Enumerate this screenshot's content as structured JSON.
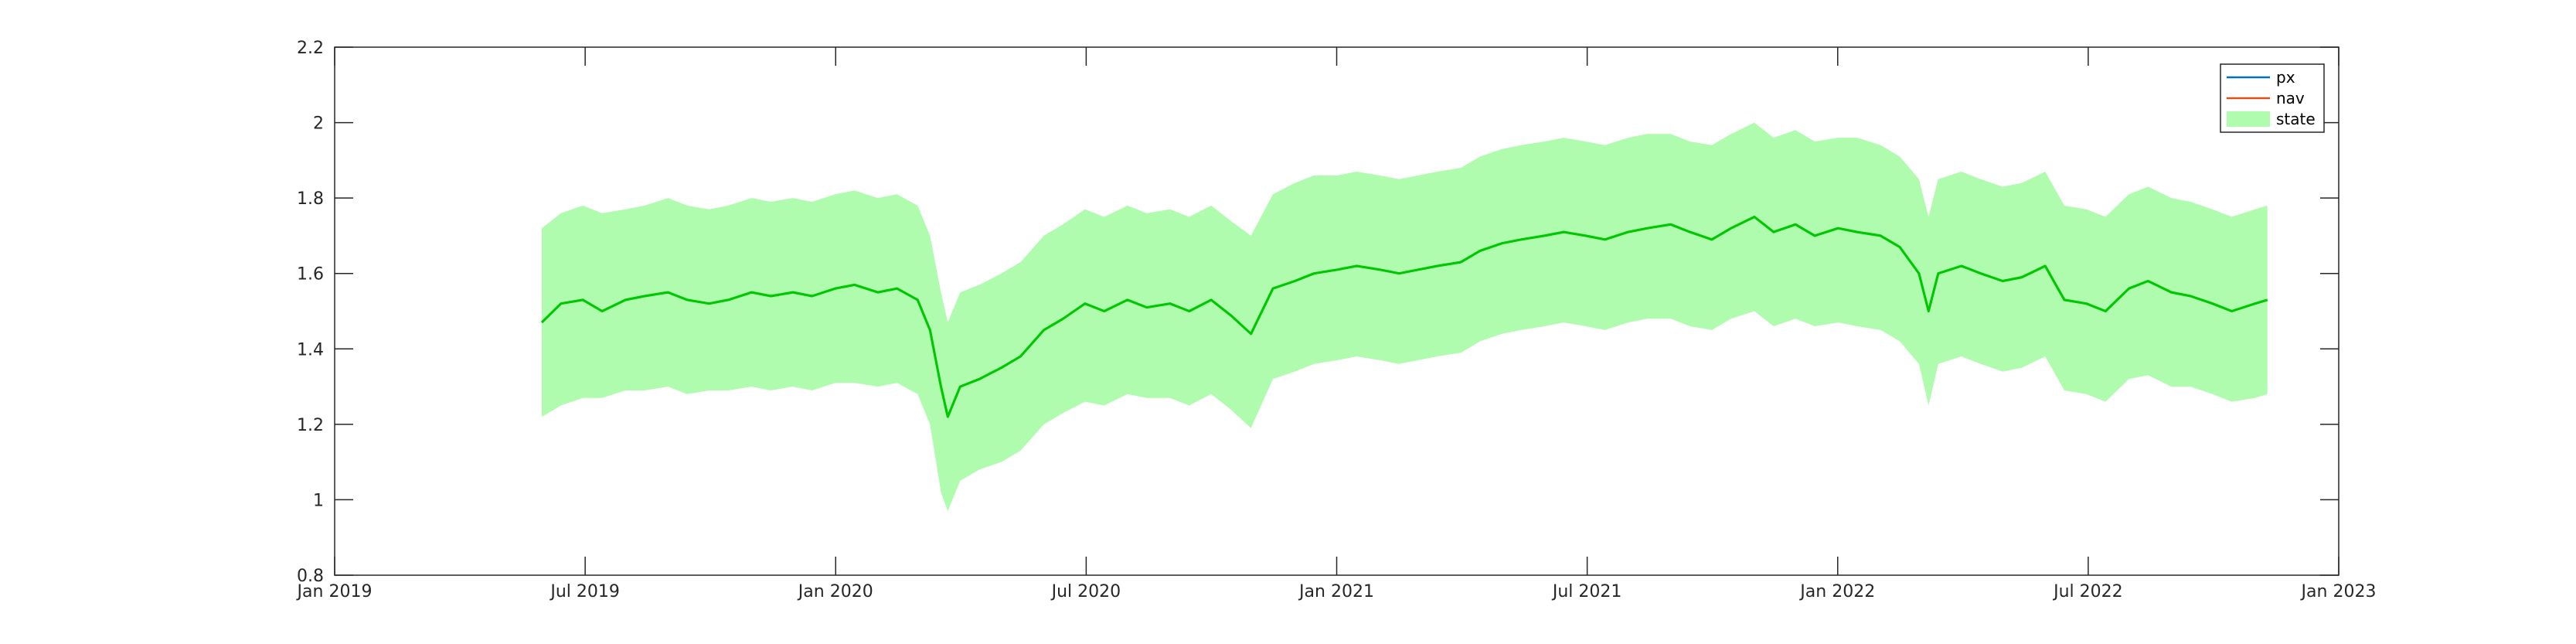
{
  "chart_data": {
    "type": "area",
    "title": "",
    "xlabel": "",
    "ylabel": "",
    "x_range": [
      "2019-01-01",
      "2023-01-01"
    ],
    "x_ticks": [
      "Jan 2019",
      "Jul 2019",
      "Jan 2020",
      "Jul 2020",
      "Jan 2021",
      "Jul 2021",
      "Jan 2022",
      "Jul 2022",
      "Jan 2023"
    ],
    "ylim": [
      0.8,
      2.2
    ],
    "y_ticks": [
      "0.8",
      "1",
      "1.2",
      "1.4",
      "1.6",
      "1.8",
      "2",
      "2.2"
    ],
    "grid": false,
    "legend_position": "top-right",
    "legend": [
      "px",
      "nav",
      "state"
    ],
    "colors": {
      "px": "#0072BD",
      "nav": "#D95319",
      "state_fill": "#B0FCAF",
      "line": "#00C800",
      "axis": "#262626"
    },
    "series": [
      {
        "name": "px",
        "x": [
          "2019-06-01",
          "2019-06-15",
          "2019-07-01",
          "2019-07-15",
          "2019-08-01",
          "2019-08-15",
          "2019-09-01",
          "2019-09-15",
          "2019-10-01",
          "2019-10-15",
          "2019-11-01",
          "2019-11-15",
          "2019-12-01",
          "2019-12-15",
          "2020-01-01",
          "2020-01-15",
          "2020-02-01",
          "2020-02-15",
          "2020-03-01",
          "2020-03-10",
          "2020-03-18",
          "2020-03-23",
          "2020-04-01",
          "2020-04-15",
          "2020-05-01",
          "2020-05-15",
          "2020-06-01",
          "2020-06-15",
          "2020-07-01",
          "2020-07-15",
          "2020-08-01",
          "2020-08-15",
          "2020-09-01",
          "2020-09-15",
          "2020-10-01",
          "2020-10-15",
          "2020-10-30",
          "2020-11-15",
          "2020-12-01",
          "2020-12-15",
          "2021-01-01",
          "2021-01-15",
          "2021-02-01",
          "2021-02-15",
          "2021-03-01",
          "2021-03-15",
          "2021-04-01",
          "2021-04-15",
          "2021-05-01",
          "2021-05-15",
          "2021-06-01",
          "2021-06-15",
          "2021-07-01",
          "2021-07-15",
          "2021-08-01",
          "2021-08-15",
          "2021-09-01",
          "2021-09-15",
          "2021-10-01",
          "2021-10-15",
          "2021-11-01",
          "2021-11-15",
          "2021-12-01",
          "2021-12-15",
          "2022-01-01",
          "2022-01-15",
          "2022-02-01",
          "2022-02-15",
          "2022-03-01",
          "2022-03-08",
          "2022-03-15",
          "2022-04-01",
          "2022-04-15",
          "2022-05-01",
          "2022-05-15",
          "2022-06-01",
          "2022-06-15",
          "2022-07-01",
          "2022-07-15",
          "2022-08-01",
          "2022-08-15",
          "2022-09-01",
          "2022-09-15",
          "2022-10-01",
          "2022-10-15",
          "2022-11-01",
          "2022-11-10"
        ],
        "y": [
          1.47,
          1.52,
          1.53,
          1.5,
          1.53,
          1.54,
          1.55,
          1.53,
          1.52,
          1.53,
          1.55,
          1.54,
          1.55,
          1.54,
          1.56,
          1.57,
          1.55,
          1.56,
          1.53,
          1.45,
          1.3,
          1.22,
          1.3,
          1.32,
          1.35,
          1.38,
          1.45,
          1.48,
          1.52,
          1.5,
          1.53,
          1.51,
          1.52,
          1.5,
          1.53,
          1.49,
          1.44,
          1.56,
          1.58,
          1.6,
          1.61,
          1.62,
          1.61,
          1.6,
          1.61,
          1.62,
          1.63,
          1.66,
          1.68,
          1.69,
          1.7,
          1.71,
          1.7,
          1.69,
          1.71,
          1.72,
          1.73,
          1.71,
          1.69,
          1.72,
          1.75,
          1.71,
          1.73,
          1.7,
          1.72,
          1.71,
          1.7,
          1.67,
          1.6,
          1.5,
          1.6,
          1.62,
          1.6,
          1.58,
          1.59,
          1.62,
          1.53,
          1.52,
          1.5,
          1.56,
          1.58,
          1.55,
          1.54,
          1.52,
          1.5,
          1.52,
          1.53
        ]
      },
      {
        "name": "nav",
        "x": [
          "2019-06-01",
          "2019-06-15",
          "2019-07-01",
          "2019-07-15",
          "2019-08-01",
          "2019-08-15",
          "2019-09-01",
          "2019-09-15",
          "2019-10-01",
          "2019-10-15",
          "2019-11-01",
          "2019-11-15",
          "2019-12-01",
          "2019-12-15",
          "2020-01-01",
          "2020-01-15",
          "2020-02-01",
          "2020-02-15",
          "2020-03-01",
          "2020-03-10",
          "2020-03-18",
          "2020-03-23",
          "2020-04-01",
          "2020-04-15",
          "2020-05-01",
          "2020-05-15",
          "2020-06-01",
          "2020-06-15",
          "2020-07-01",
          "2020-07-15",
          "2020-08-01",
          "2020-08-15",
          "2020-09-01",
          "2020-09-15",
          "2020-10-01",
          "2020-10-15",
          "2020-10-30",
          "2020-11-15",
          "2020-12-01",
          "2020-12-15",
          "2021-01-01",
          "2021-01-15",
          "2021-02-01",
          "2021-02-15",
          "2021-03-01",
          "2021-03-15",
          "2021-04-01",
          "2021-04-15",
          "2021-05-01",
          "2021-05-15",
          "2021-06-01",
          "2021-06-15",
          "2021-07-01",
          "2021-07-15",
          "2021-08-01",
          "2021-08-15",
          "2021-09-01",
          "2021-09-15",
          "2021-10-01",
          "2021-10-15",
          "2021-11-01",
          "2021-11-15",
          "2021-12-01",
          "2021-12-15",
          "2022-01-01",
          "2022-01-15",
          "2022-02-01",
          "2022-02-15",
          "2022-03-01",
          "2022-03-08",
          "2022-03-15",
          "2022-04-01",
          "2022-04-15",
          "2022-05-01",
          "2022-05-15",
          "2022-06-01",
          "2022-06-15",
          "2022-07-01",
          "2022-07-15",
          "2022-08-01",
          "2022-08-15",
          "2022-09-01",
          "2022-09-15",
          "2022-10-01",
          "2022-10-15",
          "2022-11-01",
          "2022-11-10"
        ],
        "y": [
          1.47,
          1.52,
          1.53,
          1.5,
          1.53,
          1.54,
          1.55,
          1.53,
          1.52,
          1.53,
          1.55,
          1.54,
          1.55,
          1.54,
          1.56,
          1.57,
          1.55,
          1.56,
          1.53,
          1.45,
          1.3,
          1.22,
          1.3,
          1.32,
          1.35,
          1.38,
          1.45,
          1.48,
          1.52,
          1.5,
          1.53,
          1.51,
          1.52,
          1.5,
          1.53,
          1.49,
          1.44,
          1.56,
          1.58,
          1.6,
          1.61,
          1.62,
          1.61,
          1.6,
          1.61,
          1.62,
          1.63,
          1.66,
          1.68,
          1.69,
          1.7,
          1.71,
          1.7,
          1.69,
          1.71,
          1.72,
          1.73,
          1.71,
          1.69,
          1.72,
          1.75,
          1.71,
          1.73,
          1.7,
          1.72,
          1.71,
          1.7,
          1.67,
          1.6,
          1.5,
          1.6,
          1.62,
          1.6,
          1.58,
          1.59,
          1.62,
          1.53,
          1.52,
          1.5,
          1.56,
          1.58,
          1.55,
          1.54,
          1.52,
          1.5,
          1.52,
          1.53
        ]
      },
      {
        "name": "state",
        "x": [
          "2019-06-01",
          "2019-06-15",
          "2019-07-01",
          "2019-07-15",
          "2019-08-01",
          "2019-08-15",
          "2019-09-01",
          "2019-09-15",
          "2019-10-01",
          "2019-10-15",
          "2019-11-01",
          "2019-11-15",
          "2019-12-01",
          "2019-12-15",
          "2020-01-01",
          "2020-01-15",
          "2020-02-01",
          "2020-02-15",
          "2020-03-01",
          "2020-03-10",
          "2020-03-18",
          "2020-03-23",
          "2020-04-01",
          "2020-04-15",
          "2020-05-01",
          "2020-05-15",
          "2020-06-01",
          "2020-06-15",
          "2020-07-01",
          "2020-07-15",
          "2020-08-01",
          "2020-08-15",
          "2020-09-01",
          "2020-09-15",
          "2020-10-01",
          "2020-10-15",
          "2020-10-30",
          "2020-11-15",
          "2020-12-01",
          "2020-12-15",
          "2021-01-01",
          "2021-01-15",
          "2021-02-01",
          "2021-02-15",
          "2021-03-01",
          "2021-03-15",
          "2021-04-01",
          "2021-04-15",
          "2021-05-01",
          "2021-05-15",
          "2021-06-01",
          "2021-06-15",
          "2021-07-01",
          "2021-07-15",
          "2021-08-01",
          "2021-08-15",
          "2021-09-01",
          "2021-09-15",
          "2021-10-01",
          "2021-10-15",
          "2021-11-01",
          "2021-11-15",
          "2021-12-01",
          "2021-12-15",
          "2022-01-01",
          "2022-01-15",
          "2022-02-01",
          "2022-02-15",
          "2022-03-01",
          "2022-03-08",
          "2022-03-15",
          "2022-04-01",
          "2022-04-15",
          "2022-05-01",
          "2022-05-15",
          "2022-06-01",
          "2022-06-15",
          "2022-07-01",
          "2022-07-15",
          "2022-08-01",
          "2022-08-15",
          "2022-09-01",
          "2022-09-15",
          "2022-10-01",
          "2022-10-15",
          "2022-11-01",
          "2022-11-10"
        ],
        "lower": [
          1.22,
          1.25,
          1.27,
          1.27,
          1.29,
          1.29,
          1.3,
          1.28,
          1.29,
          1.29,
          1.3,
          1.29,
          1.3,
          1.29,
          1.31,
          1.31,
          1.3,
          1.31,
          1.28,
          1.2,
          1.02,
          0.97,
          1.05,
          1.08,
          1.1,
          1.13,
          1.2,
          1.23,
          1.26,
          1.25,
          1.28,
          1.27,
          1.27,
          1.25,
          1.28,
          1.24,
          1.19,
          1.32,
          1.34,
          1.36,
          1.37,
          1.38,
          1.37,
          1.36,
          1.37,
          1.38,
          1.39,
          1.42,
          1.44,
          1.45,
          1.46,
          1.47,
          1.46,
          1.45,
          1.47,
          1.48,
          1.48,
          1.46,
          1.45,
          1.48,
          1.5,
          1.46,
          1.48,
          1.46,
          1.47,
          1.46,
          1.45,
          1.42,
          1.36,
          1.25,
          1.36,
          1.38,
          1.36,
          1.34,
          1.35,
          1.38,
          1.29,
          1.28,
          1.26,
          1.32,
          1.33,
          1.3,
          1.3,
          1.28,
          1.26,
          1.27,
          1.28
        ],
        "upper": [
          1.72,
          1.76,
          1.78,
          1.76,
          1.77,
          1.78,
          1.8,
          1.78,
          1.77,
          1.78,
          1.8,
          1.79,
          1.8,
          1.79,
          1.81,
          1.82,
          1.8,
          1.81,
          1.78,
          1.7,
          1.55,
          1.47,
          1.55,
          1.57,
          1.6,
          1.63,
          1.7,
          1.73,
          1.77,
          1.75,
          1.78,
          1.76,
          1.77,
          1.75,
          1.78,
          1.74,
          1.7,
          1.81,
          1.84,
          1.86,
          1.86,
          1.87,
          1.86,
          1.85,
          1.86,
          1.87,
          1.88,
          1.91,
          1.93,
          1.94,
          1.95,
          1.96,
          1.95,
          1.94,
          1.96,
          1.97,
          1.97,
          1.95,
          1.94,
          1.97,
          2.0,
          1.96,
          1.98,
          1.95,
          1.96,
          1.96,
          1.94,
          1.91,
          1.85,
          1.75,
          1.85,
          1.87,
          1.85,
          1.83,
          1.84,
          1.87,
          1.78,
          1.77,
          1.75,
          1.81,
          1.83,
          1.8,
          1.79,
          1.77,
          1.75,
          1.77,
          1.78
        ]
      }
    ]
  }
}
